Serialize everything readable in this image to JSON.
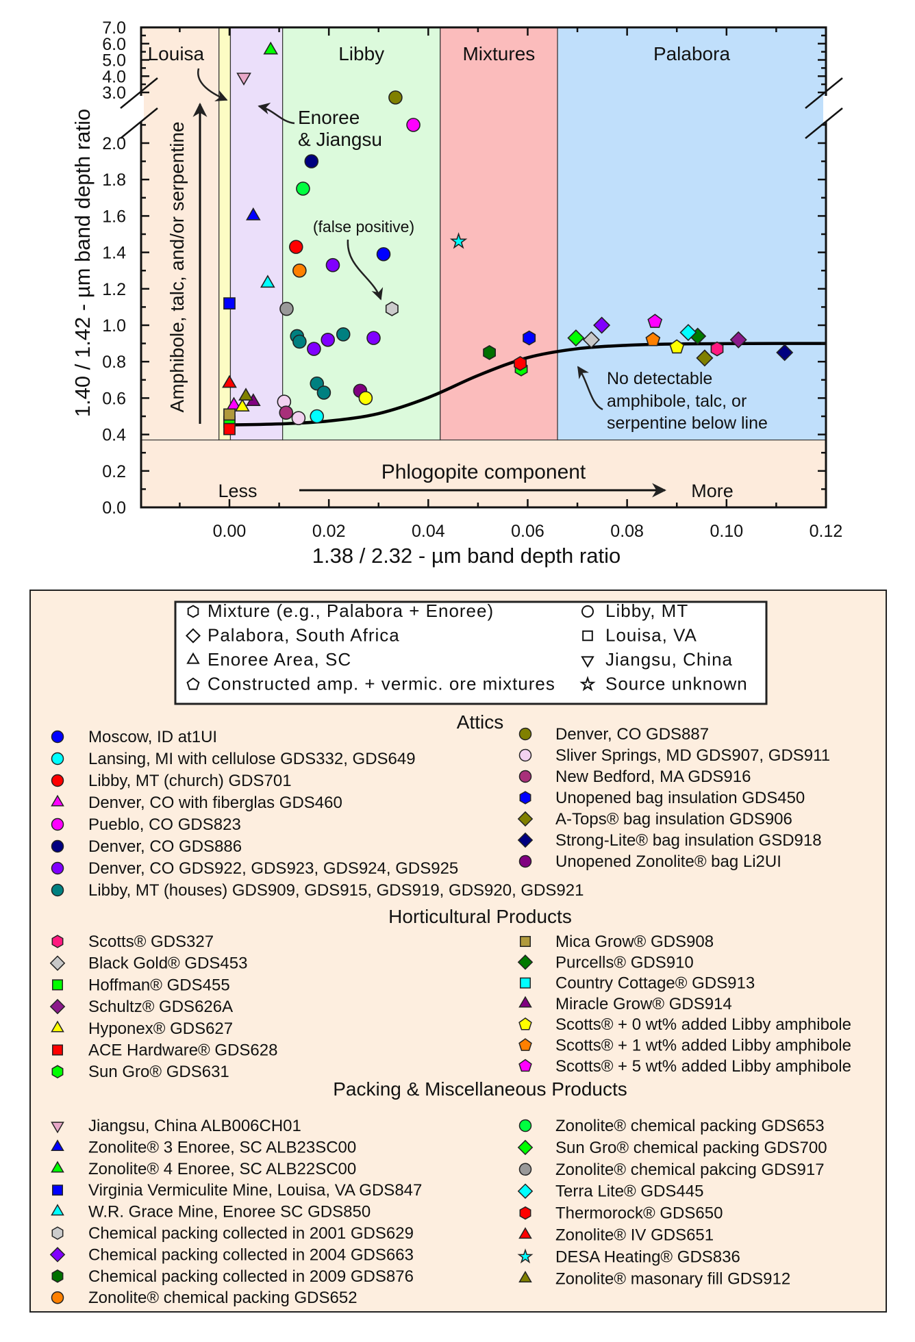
{
  "chart_data": {
    "type": "scatter",
    "xlabel": "1.38 / 2.32 - µm band depth ratio",
    "ylabel": "1.40 / 1.42 - µm band depth ratio",
    "xlim": [
      -0.018,
      0.12
    ],
    "ylim": [
      0.0,
      7.0
    ],
    "y_axis_break": [
      2.1,
      3.0
    ],
    "x_ticks": [
      "0.00",
      "0.02",
      "0.04",
      "0.06",
      "0.08",
      "0.10",
      "0.12"
    ],
    "y_ticks_lower": [
      "0.0",
      "0.2",
      "0.4",
      "0.6",
      "0.8",
      "1.0",
      "1.2",
      "1.4",
      "1.6",
      "1.8",
      "2.0"
    ],
    "y_ticks_upper": [
      "3.0",
      "4.0",
      "5.0",
      "6.0",
      "7.0"
    ],
    "grid": false,
    "regions": [
      {
        "label": "Louisa",
        "x": [
          -0.018,
          -0.0021
        ],
        "color": "#fdebdc"
      },
      {
        "label": "",
        "x": [
          -0.0021,
          0.0002
        ],
        "color": "#fcfcc4"
      },
      {
        "label": "",
        "x": [
          0.0002,
          0.0107
        ],
        "color": "#ebdffa"
      },
      {
        "label": "Libby",
        "x": [
          0.0107,
          0.0424
        ],
        "color": "#dcfadc"
      },
      {
        "label": "Mixtures",
        "x": [
          0.0424,
          0.066
        ],
        "color": "#fbbcbc"
      },
      {
        "label": "Palabora",
        "x": [
          0.066,
          0.12
        ],
        "color": "#c0dffb"
      }
    ],
    "region_floor_y": 0.37,
    "background_color": "#fdebdc",
    "curve": {
      "x": [
        0,
        0.01,
        0.02,
        0.03,
        0.04,
        0.05,
        0.06,
        0.07,
        0.08,
        0.09,
        0.1,
        0.11,
        0.12
      ],
      "y": [
        0.453,
        0.458,
        0.474,
        0.515,
        0.603,
        0.724,
        0.822,
        0.871,
        0.89,
        0.897,
        0.899,
        0.9,
        0.9
      ]
    },
    "annotations": {
      "enoree_1": "Enoree",
      "enoree_2": "& Jiangsu",
      "false_positive": "(false positive)",
      "below_1": "No detectable",
      "below_2": "amphibole, talc, or",
      "below_3": "serpentine below line",
      "vertical": "Amphibole, talc, and/or serpentine",
      "phlogopite": "Phlogopite component",
      "less": "Less",
      "more": "More"
    },
    "shape_key": {
      "left": [
        {
          "shape": "hexagon",
          "label": "Mixture (e.g., Palabora + Enoree)"
        },
        {
          "shape": "diamond",
          "label": "Palabora, South Africa"
        },
        {
          "shape": "triangle",
          "label": "Enoree Area, SC"
        },
        {
          "shape": "pentagon",
          "label": "Constructed amp. + vermic. ore mixtures"
        }
      ],
      "right": [
        {
          "shape": "circle",
          "label": "Libby, MT"
        },
        {
          "shape": "square",
          "label": "Louisa, VA"
        },
        {
          "shape": "triangle-down",
          "label": "Jiangsu, China"
        },
        {
          "shape": "star",
          "label": "Source unknown"
        }
      ]
    },
    "groups": [
      {
        "title": "Attics",
        "left": [
          {
            "name": "Moscow, ID at1UI",
            "shape": "circle",
            "color": "#0000ff",
            "points": [
              [
                0.031,
                1.39
              ]
            ]
          },
          {
            "name": "Lansing, MI with cellulose GDS332, GDS649",
            "shape": "circle",
            "color": "#00ffff",
            "points": [
              [
                0.0176,
                0.5
              ]
            ]
          },
          {
            "name": "Libby, MT (church) GDS701",
            "shape": "circle",
            "color": "#ff0000",
            "points": [
              [
                0.0134,
                1.43
              ]
            ]
          },
          {
            "name": "Denver, CO with fiberglas GDS460",
            "shape": "triangle",
            "color": "#ff00ff",
            "points": [
              [
                0.0009,
                0.56
              ]
            ]
          },
          {
            "name": "Pueblo, CO GDS823",
            "shape": "circle",
            "color": "#ff00ff",
            "points": [
              [
                0.037,
                2.1
              ]
            ]
          },
          {
            "name": "Denver, CO GDS886",
            "shape": "circle",
            "color": "#000080",
            "points": [
              [
                0.0165,
                1.9
              ]
            ]
          },
          {
            "name": "Denver, CO GDS922, GDS923, GDS924, GDS925",
            "shape": "circle",
            "color": "#8000ff",
            "points": [
              [
                0.0208,
                1.33
              ],
              [
                0.017,
                0.87
              ],
              [
                0.0198,
                0.92
              ],
              [
                0.029,
                0.93
              ]
            ]
          },
          {
            "name": "Libby, MT (houses) GDS909, GDS915, GDS919, GDS920, GDS921",
            "shape": "circle",
            "color": "#008080",
            "points": [
              [
                0.0136,
                0.94
              ],
              [
                0.0141,
                0.91
              ],
              [
                0.0229,
                0.95
              ],
              [
                0.0176,
                0.68
              ],
              [
                0.019,
                0.63
              ]
            ]
          }
        ],
        "right": [
          {
            "name": "Denver, CO GDS887",
            "shape": "circle",
            "color": "#808000",
            "points": [
              [
                0.0334,
                2.86
              ]
            ]
          },
          {
            "name": "Sliver Springs, MD GDS907, GDS911",
            "shape": "circle",
            "color": "#f2d2f0",
            "points": [
              [
                0.011,
                0.58
              ],
              [
                0.0139,
                0.49
              ]
            ]
          },
          {
            "name": "New Bedford, MA GDS916",
            "shape": "circle",
            "color": "#a8307a",
            "points": [
              [
                0.0114,
                0.52
              ]
            ]
          },
          {
            "name": "Unopened bag insulation GDS450",
            "shape": "hexagon",
            "color": "#0000ff",
            "points": [
              [
                0.0603,
                0.93
              ]
            ]
          },
          {
            "name": "A-Tops® bag insulation GDS906",
            "shape": "diamond",
            "color": "#808000",
            "points": [
              [
                0.0956,
                0.82
              ]
            ]
          },
          {
            "name": "Strong-Lite® bag insulation GSD918",
            "shape": "diamond",
            "color": "#000080",
            "points": [
              [
                0.1117,
                0.85
              ]
            ]
          },
          {
            "name": "Unopened Zonolite® bag Li2UI",
            "shape": "circle",
            "color": "#800080",
            "points": [
              [
                0.0263,
                0.64
              ]
            ]
          }
        ]
      },
      {
        "title": "Horticultural Products",
        "left": [
          {
            "name": "Scotts® GDS327",
            "shape": "hexagon",
            "color": "#ff1a80",
            "points": [
              [
                0.0981,
                0.87
              ]
            ]
          },
          {
            "name": "Black Gold® GDS453",
            "shape": "diamond",
            "color": "#c8c8c8",
            "points": [
              [
                0.0728,
                0.92
              ]
            ]
          },
          {
            "name": "Hoffman® GDS455",
            "shape": "square",
            "color": "#00ff00",
            "points": [
              [
                0.0,
                0.47
              ]
            ]
          },
          {
            "name": "Schultz® GDS626A",
            "shape": "diamond",
            "color": "#8b1a8b",
            "points": [
              [
                0.1024,
                0.92
              ]
            ]
          },
          {
            "name": "Hyponex® GDS627",
            "shape": "triangle",
            "color": "#ffff00",
            "points": [
              [
                0.0026,
                0.55
              ]
            ]
          },
          {
            "name": "ACE Hardware® GDS628",
            "shape": "square",
            "color": "#ff0000",
            "points": [
              [
                0.0,
                0.43
              ]
            ]
          },
          {
            "name": "Sun Gro® GDS631",
            "shape": "hexagon",
            "color": "#00ff00",
            "points": [
              [
                0.0587,
                0.76
              ]
            ]
          }
        ],
        "right": [
          {
            "name": "Mica Grow® GDS908",
            "shape": "square",
            "color": "#b09a3c",
            "points": [
              [
                0.0,
                0.51
              ]
            ]
          },
          {
            "name": "Purcells® GDS910",
            "shape": "diamond",
            "color": "#007a00",
            "points": [
              [
                0.0942,
                0.94
              ]
            ]
          },
          {
            "name": "Country Cottage® GDS913",
            "shape": "square",
            "color": "#00ffff",
            "points": []
          },
          {
            "name": "Miracle Grow® GDS914",
            "shape": "triangle",
            "color": "#800080",
            "points": [
              [
                0.0048,
                0.58
              ]
            ]
          },
          {
            "name": "Scotts® + 0 wt% added Libby amphibole",
            "shape": "pentagon",
            "color": "#ffff00",
            "points": [
              [
                0.09,
                0.88
              ]
            ]
          },
          {
            "name": "Scotts® + 1 wt% added Libby amphibole",
            "shape": "pentagon",
            "color": "#ff8000",
            "points": [
              [
                0.0852,
                0.92
              ]
            ]
          },
          {
            "name": "Scotts® + 5 wt% added Libby amphibole",
            "shape": "pentagon",
            "color": "#ff00ff",
            "points": [
              [
                0.0856,
                1.02
              ]
            ]
          }
        ]
      },
      {
        "title": "Packing & Miscellaneous Products",
        "left": [
          {
            "name": "Jiangsu, China ALB006CH01",
            "shape": "triangle-down",
            "color": "#e8a8c8",
            "points": [
              [
                0.0029,
                3.95
              ]
            ]
          },
          {
            "name": "Zonolite® 3 Enoree, SC ALB23SC00",
            "shape": "triangle",
            "color": "#0000ff",
            "points": [
              [
                0.0048,
                1.6
              ]
            ]
          },
          {
            "name": "Zonolite® 4 Enoree, SC ALB22SC00",
            "shape": "triangle",
            "color": "#00ff00",
            "points": [
              [
                0.0083,
                5.6
              ]
            ]
          },
          {
            "name": "Virginia Vermiculite Mine, Louisa, VA GDS847",
            "shape": "square",
            "color": "#0000ff",
            "points": [
              [
                0.0,
                1.12
              ]
            ]
          },
          {
            "name": "W.R. Grace Mine, Enoree SC GDS850",
            "shape": "triangle",
            "color": "#00ffff",
            "points": [
              [
                0.0077,
                1.23
              ]
            ]
          },
          {
            "name": "Chemical packing collected in 2001 GDS629",
            "shape": "hexagon",
            "color": "#cccccc",
            "points": [
              [
                0.0327,
                1.09
              ]
            ]
          },
          {
            "name": "Chemical packing collected in 2004 GDS663",
            "shape": "diamond",
            "color": "#8000ff",
            "points": [
              [
                0.0749,
                1.0
              ]
            ]
          },
          {
            "name": "Chemical packing collected in 2009 GDS876",
            "shape": "hexagon",
            "color": "#007000",
            "points": [
              [
                0.0523,
                0.85
              ]
            ]
          },
          {
            "name": "Zonolite® chemical packing GDS652",
            "shape": "circle",
            "color": "#ff8000",
            "points": [
              [
                0.0141,
                1.3
              ]
            ]
          }
        ],
        "right": [
          {
            "name": "Zonolite® chemical packing GDS653",
            "shape": "circle",
            "color": "#00ff40",
            "points": [
              [
                0.0148,
                1.75
              ]
            ]
          },
          {
            "name": "Sun Gro® chemical packing GDS700",
            "shape": "diamond",
            "color": "#00ff00",
            "points": [
              [
                0.0697,
                0.93
              ]
            ]
          },
          {
            "name": "Zonolite® chemical pakcing GDS917",
            "shape": "circle",
            "color": "#999999",
            "points": [
              [
                0.0115,
                1.09
              ]
            ]
          },
          {
            "name": "Terra Lite® GDS445",
            "shape": "diamond",
            "color": "#00ffff",
            "points": [
              [
                0.0923,
                0.96
              ]
            ]
          },
          {
            "name": "Thermorock® GDS650",
            "shape": "hexagon",
            "color": "#ff0000",
            "points": [
              [
                0.0585,
                0.79
              ]
            ]
          },
          {
            "name": "Zonolite® IV GDS651",
            "shape": "triangle",
            "color": "#ff0000",
            "points": [
              [
                0.0,
                0.68
              ]
            ]
          },
          {
            "name": "DESA Heating® GDS836",
            "shape": "star",
            "color": "#00ffff",
            "points": [
              [
                0.0461,
                1.46
              ]
            ]
          },
          {
            "name": "Zonolite® masonary fill GDS912",
            "shape": "triangle",
            "color": "#808000",
            "points": [
              [
                0.0033,
                0.61
              ]
            ]
          }
        ]
      }
    ],
    "unlabeled_points": [
      {
        "shape": "circle",
        "color": "#ffff00",
        "points": [
          [
            0.0274,
            0.6
          ]
        ]
      }
    ]
  }
}
